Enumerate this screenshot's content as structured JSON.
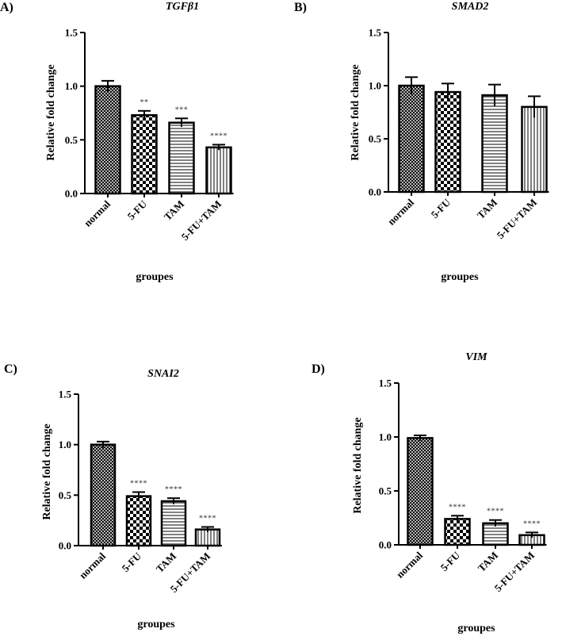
{
  "chart_data": [
    {
      "panel": "A)",
      "type": "bar",
      "title": "TGFβ1",
      "xlabel": "groupes",
      "ylabel": "Relative fold change",
      "ylim": [
        0,
        1.5
      ],
      "yticks": [
        "0.0",
        "0.5",
        "1.0",
        "1.5"
      ],
      "categories": [
        "normal",
        "5-FU",
        "TAM",
        "5-FU+TAM"
      ],
      "values": [
        1.0,
        0.73,
        0.66,
        0.43
      ],
      "errors": [
        0.05,
        0.04,
        0.04,
        0.025
      ],
      "significance": [
        "",
        "**",
        "***",
        "****"
      ],
      "patterns": [
        "crosshatch",
        "checker",
        "horizontal",
        "vertical"
      ]
    },
    {
      "panel": "B)",
      "type": "bar",
      "title": "SMAD2",
      "xlabel": "groupes",
      "ylabel": "Relative fold change",
      "ylim": [
        0,
        1.5
      ],
      "yticks": [
        "0.0",
        "0.5",
        "1.0",
        "1.5"
      ],
      "categories": [
        "normal",
        "5-FU",
        "TAM",
        "5-FU+TAM"
      ],
      "values": [
        1.0,
        0.94,
        0.91,
        0.8
      ],
      "errors": [
        0.08,
        0.08,
        0.1,
        0.1
      ],
      "significance": [
        "",
        "",
        "",
        ""
      ],
      "patterns": [
        "crosshatch",
        "checker",
        "horizontal",
        "vertical"
      ]
    },
    {
      "panel": "C)",
      "type": "bar",
      "title": "SNAI2",
      "xlabel": "groupes",
      "ylabel": "Relative fold change",
      "ylim": [
        0,
        1.5
      ],
      "yticks": [
        "0.0",
        "0.5",
        "1.0",
        "1.5"
      ],
      "categories": [
        "normal",
        "5-FU",
        "TAM",
        "5-FU+TAM"
      ],
      "values": [
        1.0,
        0.49,
        0.44,
        0.16
      ],
      "errors": [
        0.03,
        0.04,
        0.03,
        0.025
      ],
      "significance": [
        "",
        "****",
        "****",
        "****"
      ],
      "patterns": [
        "crosshatch",
        "checker",
        "horizontal",
        "vertical"
      ]
    },
    {
      "panel": "D)",
      "type": "bar",
      "title": "VIM",
      "xlabel": "groupes",
      "ylabel": "Relative fold change",
      "ylim": [
        0,
        1.5
      ],
      "yticks": [
        "0.0",
        "0.5",
        "1.0",
        "1.5"
      ],
      "categories": [
        "normal",
        "5-FU",
        "TAM",
        "5-FU+TAM"
      ],
      "values": [
        0.99,
        0.24,
        0.2,
        0.09
      ],
      "errors": [
        0.025,
        0.03,
        0.03,
        0.025
      ],
      "significance": [
        "",
        "****",
        "****",
        "****"
      ],
      "patterns": [
        "crosshatch",
        "checker",
        "horizontal",
        "vertical"
      ]
    }
  ]
}
